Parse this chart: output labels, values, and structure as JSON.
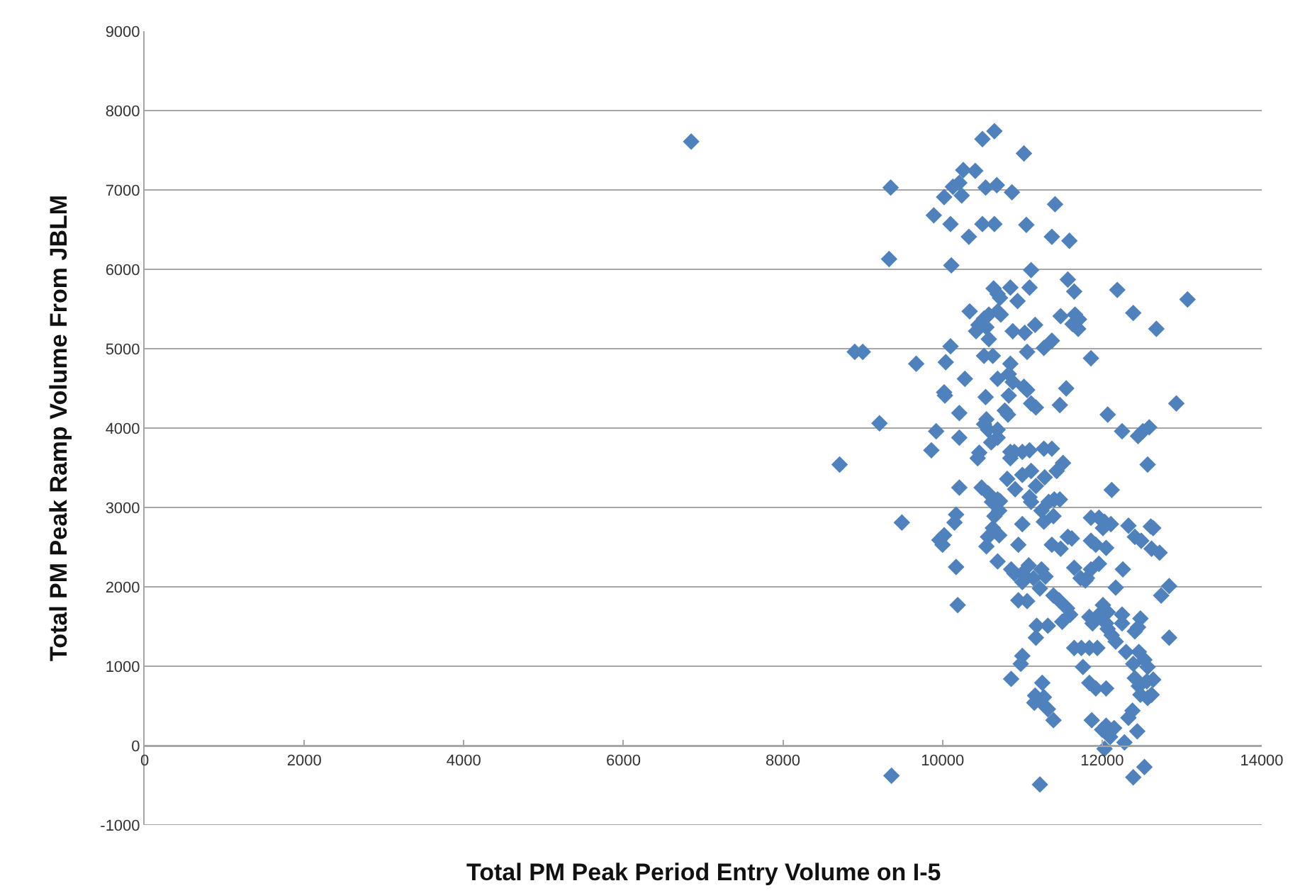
{
  "chart_data": {
    "type": "scatter",
    "xlabel": "Total PM Peak Period Entry Volume on I-5",
    "ylabel": "Total PM Peak Ramp Volume From JBLM",
    "xlim": [
      0,
      14000
    ],
    "xticks": [
      0,
      2000,
      4000,
      6000,
      8000,
      10000,
      12000,
      14000
    ],
    "ylim": [
      -1000,
      9000
    ],
    "yticks": [
      -1000,
      0,
      1000,
      2000,
      3000,
      4000,
      5000,
      6000,
      7000,
      8000,
      9000
    ],
    "grid": "y",
    "marker": "diamond",
    "series": [
      {
        "color": "#4f81bd",
        "x": [
          6850,
          9350,
          9330,
          8900,
          9000,
          9210,
          8710,
          9490,
          9670,
          9890,
          10020,
          10100,
          10130,
          10210,
          10240,
          10260,
          10410,
          10330,
          10500,
          10650,
          10540,
          10680,
          10500,
          10650,
          10870,
          11020,
          11050,
          11410,
          11370,
          11590,
          10110,
          11110,
          9920,
          9860,
          9960,
          10000,
          10020,
          10170,
          10150,
          10210,
          10170,
          10190,
          10210,
          10210,
          10020,
          10030,
          10040,
          10100,
          10280,
          10340,
          10420,
          10450,
          10520,
          10550,
          10580,
          10580,
          10540,
          10520,
          10630,
          10520,
          10570,
          10550,
          10690,
          10690,
          10610,
          10440,
          10460,
          10490,
          10570,
          10620,
          10690,
          10720,
          10570,
          10630,
          10550,
          10710,
          10690,
          10650,
          10710,
          10810,
          10850,
          10910,
          10850,
          10900,
          11000,
          11090,
          11270,
          11370,
          11000,
          11110,
          11170,
          11280,
          11430,
          11510,
          11090,
          11110,
          11240,
          11330,
          11400,
          11470,
          11000,
          11270,
          10950,
          11370,
          11480,
          11570,
          11620,
          10860,
          10900,
          11000,
          11080,
          11140,
          11240,
          11290,
          11000,
          10950,
          11060,
          11220,
          11320,
          11180,
          11170,
          11000,
          10980,
          10860,
          11250,
          11160,
          11220,
          11270,
          11150,
          11320,
          11390,
          11220,
          9360,
          11390,
          11460,
          11560,
          11600,
          11500,
          11650,
          11740,
          11650,
          11730,
          11790,
          11390,
          11650,
          11570,
          11660,
          11710,
          11630,
          11700,
          11480,
          11370,
          11270,
          11160,
          11060,
          10880,
          11030,
          10940,
          10850,
          10690,
          10640,
          10720,
          10730,
          10690,
          11090,
          10850,
          10830,
          10880,
          10830,
          10780,
          11020,
          11060,
          11110,
          11170,
          11470,
          11550,
          10690,
          10820,
          11860,
          12070,
          11860,
          11960,
          12030,
          12110,
          12010,
          12120,
          12190,
          12390,
          12680,
          13070,
          12930,
          12250,
          12450,
          12510,
          12590,
          12570,
          12330,
          12410,
          12490,
          12610,
          12620,
          12260,
          12050,
          11860,
          11920,
          11860,
          11960,
          11810,
          12170,
          11840,
          11880,
          11960,
          12010,
          12070,
          12050,
          12070,
          12250,
          12250,
          12120,
          12170,
          12480,
          12450,
          12410,
          11840,
          11940,
          11760,
          11840,
          11920,
          12050,
          12300,
          12390,
          12460,
          12530,
          12570,
          12740,
          12840,
          12840,
          12640,
          12410,
          12460,
          12480,
          12570,
          12620,
          12560,
          12640,
          11870,
          12000,
          12050,
          12150,
          12100,
          12030,
          12330,
          12380,
          12280,
          12440,
          12390,
          12530,
          12720
        ],
        "values": [
          7610,
          7030,
          6130,
          4960,
          4960,
          4060,
          3540,
          2810,
          4810,
          6680,
          6910,
          6570,
          7040,
          7090,
          6930,
          7250,
          7240,
          6410,
          6570,
          6570,
          7030,
          7060,
          7640,
          7740,
          6970,
          7460,
          6560,
          6820,
          6410,
          6360,
          6050,
          5990,
          3960,
          3720,
          2590,
          2530,
          2650,
          2910,
          2810,
          3250,
          2250,
          1770,
          3880,
          4190,
          4450,
          4410,
          4830,
          5030,
          4620,
          5470,
          5220,
          5300,
          5380,
          5270,
          5430,
          5120,
          4390,
          4910,
          4910,
          4050,
          3980,
          4110,
          3980,
          3880,
          3820,
          3620,
          3690,
          3250,
          3180,
          3070,
          3100,
          3080,
          2630,
          2740,
          2510,
          2650,
          2320,
          2890,
          2960,
          3360,
          3620,
          3230,
          3700,
          3700,
          3700,
          3720,
          3740,
          3740,
          3410,
          3460,
          3270,
          3380,
          3460,
          3560,
          3130,
          3070,
          2960,
          3070,
          3100,
          3100,
          2790,
          2820,
          2530,
          2530,
          2480,
          2630,
          2610,
          2220,
          2170,
          2170,
          2270,
          2110,
          2220,
          2130,
          2060,
          1830,
          1820,
          1980,
          1510,
          1510,
          1360,
          1130,
          1030,
          840,
          790,
          630,
          560,
          610,
          540,
          460,
          320,
          -490,
          -380,
          1890,
          1830,
          1730,
          1650,
          1560,
          1230,
          1230,
          2240,
          2110,
          2080,
          2890,
          5720,
          5870,
          5430,
          5370,
          5310,
          5250,
          5410,
          5100,
          5010,
          5300,
          4960,
          5220,
          5200,
          5600,
          5770,
          5690,
          5760,
          5640,
          5430,
          5470,
          5770,
          4810,
          4680,
          4580,
          4410,
          4220,
          4520,
          4480,
          4310,
          4260,
          4290,
          4500,
          4620,
          4170,
          4880,
          4170,
          2870,
          2870,
          2820,
          2790,
          2740,
          3220,
          5740,
          5450,
          5250,
          5620,
          4310,
          3960,
          3900,
          3960,
          4010,
          3540,
          2770,
          2630,
          2580,
          2760,
          2480,
          2220,
          2490,
          2580,
          2530,
          2220,
          2290,
          2110,
          1990,
          1620,
          1540,
          1650,
          1770,
          1680,
          1540,
          1470,
          1650,
          1540,
          1390,
          1310,
          1600,
          1490,
          1440,
          1230,
          1230,
          990,
          790,
          720,
          720,
          1180,
          1030,
          1180,
          1080,
          990,
          1890,
          2010,
          1360,
          2740,
          850,
          750,
          640,
          600,
          640,
          810,
          830,
          320,
          200,
          250,
          220,
          110,
          -40,
          350,
          440,
          40,
          180,
          -400,
          -270,
          2430
        ]
      }
    ]
  }
}
